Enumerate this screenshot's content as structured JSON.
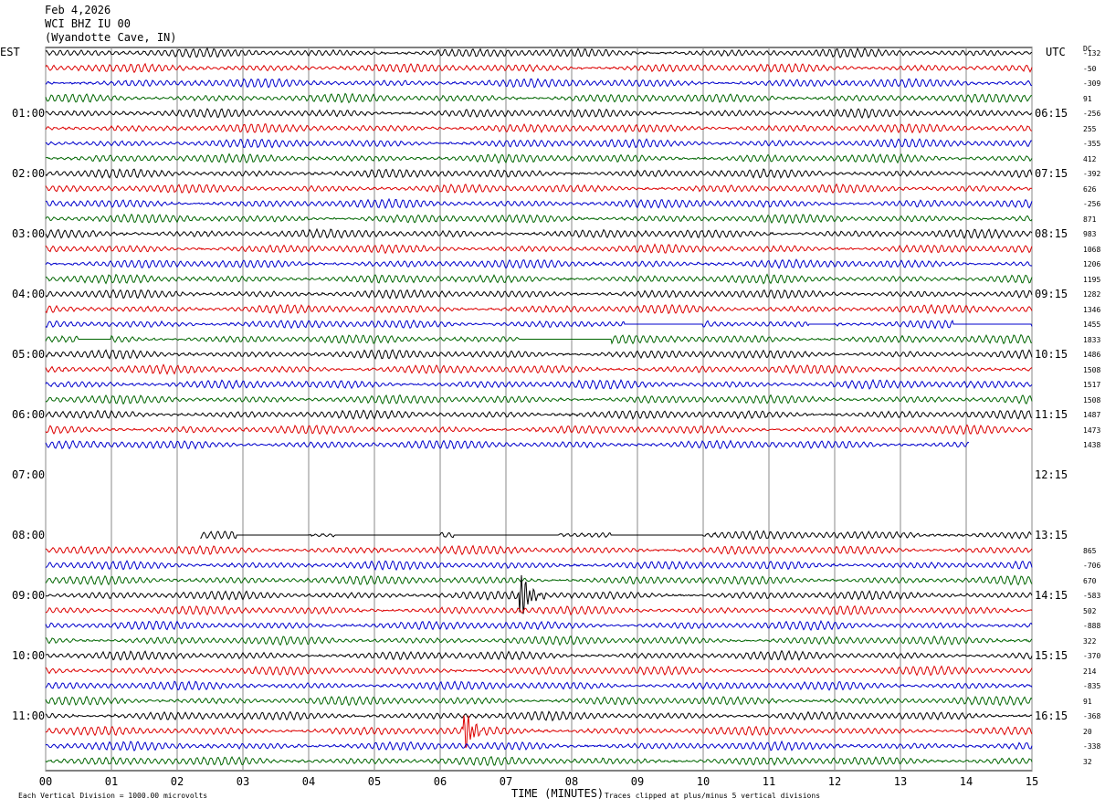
{
  "header": {
    "date": "Feb 4,2026",
    "station": "WCI BHZ IU 00",
    "location": "(Wyandotte Cave, IN)"
  },
  "left_tz": "EST",
  "right_tz": "UTC",
  "dc_label": "DC",
  "footer": {
    "xlabel": "TIME (MINUTES)",
    "scale_note": "Each Vertical Division = 1000.00 microvolts",
    "clip_note": "Traces clipped at plus/minus 5 vertical divisions"
  },
  "chart_data": {
    "type": "line",
    "title": "WCI BHZ IU 00 (Wyandotte Cave, IN) Feb 4,2026",
    "xlabel": "TIME (MINUTES)",
    "xlim": [
      0,
      15
    ],
    "x_ticks": [
      "00",
      "01",
      "02",
      "03",
      "04",
      "05",
      "06",
      "07",
      "08",
      "09",
      "10",
      "11",
      "12",
      "13",
      "14",
      "15"
    ],
    "trace_colors": [
      "#000000",
      "#dd0000",
      "#0000cc",
      "#006600"
    ],
    "row_minutes": 15,
    "est_labels": [
      "01:00",
      "02:00",
      "03:00",
      "04:00",
      "05:00",
      "06:00",
      "07:00",
      "08:00",
      "09:00",
      "10:00",
      "11:00"
    ],
    "utc_labels": [
      "06:15",
      "07:15",
      "08:15",
      "09:15",
      "10:15",
      "11:15",
      "12:15",
      "13:15",
      "14:15",
      "15:15",
      "16:15"
    ],
    "traces": [
      {
        "dc": "-132",
        "start": 0,
        "end": 15
      },
      {
        "dc": "-50",
        "start": 0,
        "end": 15
      },
      {
        "dc": "-309",
        "start": 0,
        "end": 15
      },
      {
        "dc": "91",
        "start": 0,
        "end": 15
      },
      {
        "dc": "-256",
        "start": 0,
        "end": 15
      },
      {
        "dc": "255",
        "start": 0,
        "end": 15
      },
      {
        "dc": "-355",
        "start": 0,
        "end": 15
      },
      {
        "dc": "412",
        "start": 0,
        "end": 15
      },
      {
        "dc": "-392",
        "start": 0,
        "end": 15
      },
      {
        "dc": "626",
        "start": 0,
        "end": 15
      },
      {
        "dc": "-256",
        "start": 0,
        "end": 15
      },
      {
        "dc": "871",
        "start": 0,
        "end": 15
      },
      {
        "dc": "983",
        "start": 0,
        "end": 15
      },
      {
        "dc": "1068",
        "start": 0,
        "end": 15
      },
      {
        "dc": "1206",
        "start": 0,
        "end": 15
      },
      {
        "dc": "1195",
        "start": 0,
        "end": 15
      },
      {
        "dc": "1282",
        "start": 0,
        "end": 15
      },
      {
        "dc": "1346",
        "start": 0,
        "end": 15
      },
      {
        "dc": "1455",
        "start": 0,
        "end": 15,
        "gaps": [
          [
            8.8,
            10.0
          ],
          [
            11.6,
            12.0
          ],
          [
            13.8,
            15
          ]
        ]
      },
      {
        "dc": "1833",
        "start": 0,
        "end": 15,
        "gaps": [
          [
            0.5,
            1.0
          ],
          [
            7.2,
            8.6
          ]
        ]
      },
      {
        "dc": "1486",
        "start": 0,
        "end": 15
      },
      {
        "dc": "1508",
        "start": 0,
        "end": 15
      },
      {
        "dc": "1517",
        "start": 0,
        "end": 15
      },
      {
        "dc": "1508",
        "start": 0,
        "end": 15
      },
      {
        "dc": "1487",
        "start": 0,
        "end": 15
      },
      {
        "dc": "1473",
        "start": 0,
        "end": 15
      },
      {
        "dc": "1438",
        "start": 0,
        "end": 14.05
      },
      {
        "dc": "",
        "start": 0,
        "end": 0
      },
      {
        "dc": "",
        "start": 0,
        "end": 0
      },
      {
        "dc": "",
        "start": 0,
        "end": 0
      },
      {
        "dc": "",
        "start": 0,
        "end": 0
      },
      {
        "dc": "",
        "start": 0,
        "end": 0
      },
      {
        "dc": "",
        "start": 2.35,
        "end": 15,
        "gaps": [
          [
            2.9,
            4.0
          ],
          [
            4.4,
            6.0
          ],
          [
            6.2,
            7.8
          ],
          [
            8.6,
            10.0
          ]
        ]
      },
      {
        "dc": "865",
        "start": 0,
        "end": 15
      },
      {
        "dc": "-706",
        "start": 0,
        "end": 15
      },
      {
        "dc": "670",
        "start": 0,
        "end": 15
      },
      {
        "dc": "-583",
        "start": 0,
        "end": 15,
        "events": [
          {
            "t": 7.25,
            "amp": 3.2
          }
        ]
      },
      {
        "dc": "502",
        "start": 0,
        "end": 15
      },
      {
        "dc": "-888",
        "start": 0,
        "end": 15
      },
      {
        "dc": "322",
        "start": 0,
        "end": 15
      },
      {
        "dc": "-370",
        "start": 0,
        "end": 15
      },
      {
        "dc": "214",
        "start": 0,
        "end": 15
      },
      {
        "dc": "-835",
        "start": 0,
        "end": 15
      },
      {
        "dc": "91",
        "start": 0,
        "end": 15
      },
      {
        "dc": "-368",
        "start": 0,
        "end": 15
      },
      {
        "dc": "20",
        "start": 0,
        "end": 15,
        "events": [
          {
            "t": 6.4,
            "amp": 2.6
          }
        ]
      },
      {
        "dc": "-338",
        "start": 0,
        "end": 15
      },
      {
        "dc": "32",
        "start": 0,
        "end": 15
      }
    ]
  }
}
